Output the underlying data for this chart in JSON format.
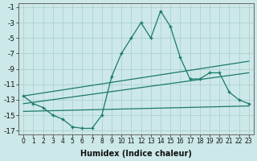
{
  "xlabel": "Humidex (Indice chaleur)",
  "background_color": "#cce8e8",
  "grid_color": "#aacccc",
  "line_color": "#1a7a6a",
  "xlim": [
    -0.5,
    23.5
  ],
  "ylim": [
    -17.5,
    -0.5
  ],
  "xticks": [
    0,
    1,
    2,
    3,
    4,
    5,
    6,
    7,
    8,
    9,
    10,
    11,
    12,
    13,
    14,
    15,
    16,
    17,
    18,
    19,
    20,
    21,
    22,
    23
  ],
  "yticks": [
    -1,
    -3,
    -5,
    -7,
    -9,
    -11,
    -13,
    -15,
    -17
  ],
  "main_x": [
    0,
    1,
    2,
    3,
    4,
    5,
    6,
    7,
    8,
    9,
    10,
    11,
    12,
    13,
    14,
    15,
    16,
    17,
    18,
    19,
    20,
    21,
    22,
    23
  ],
  "main_y": [
    -12.5,
    -13.5,
    -14.0,
    -15.0,
    -15.5,
    -16.5,
    -16.7,
    -16.7,
    -15.0,
    -10.0,
    -7.0,
    -5.0,
    -3.0,
    -5.0,
    -1.5,
    -3.5,
    -7.5,
    -10.3,
    -10.3,
    -9.5,
    -9.5,
    -12.0,
    -13.0,
    -13.5
  ],
  "line1_x": [
    0,
    23
  ],
  "line1_y": [
    -12.5,
    -8.0
  ],
  "line2_x": [
    0,
    23
  ],
  "line2_y": [
    -13.5,
    -9.5
  ],
  "line3_x": [
    0,
    23
  ],
  "line3_y": [
    -14.5,
    -13.8
  ]
}
